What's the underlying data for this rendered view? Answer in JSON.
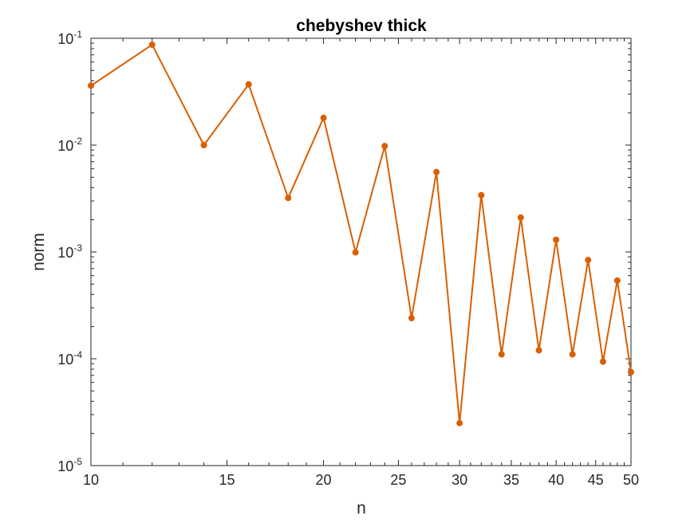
{
  "chart_data": {
    "type": "line",
    "title": "chebyshev thick",
    "xlabel": "n",
    "ylabel": "norm",
    "xscale": "log",
    "yscale": "log",
    "xlim": [
      10,
      50
    ],
    "ylim": [
      1e-05,
      0.1
    ],
    "grid": false,
    "legend": "none",
    "color": "#D95F00",
    "x_ticks": [
      {
        "value": 10,
        "label": "10"
      },
      {
        "value": 15,
        "label": "15"
      },
      {
        "value": 20,
        "label": "20"
      },
      {
        "value": 25,
        "label": "25"
      },
      {
        "value": 30,
        "label": "30"
      },
      {
        "value": 35,
        "label": "35"
      },
      {
        "value": 40,
        "label": "40"
      },
      {
        "value": 45,
        "label": "45"
      },
      {
        "value": 50,
        "label": "50"
      }
    ],
    "y_ticks": [
      {
        "value": 0.1,
        "base": "10",
        "exp": "-1"
      },
      {
        "value": 0.01,
        "base": "10",
        "exp": "-2"
      },
      {
        "value": 0.001,
        "base": "10",
        "exp": "-3"
      },
      {
        "value": 0.0001,
        "base": "10",
        "exp": "-4"
      },
      {
        "value": 1e-05,
        "base": "10",
        "exp": "-5"
      }
    ],
    "series": [
      {
        "x": [
          10,
          12,
          14,
          16,
          18,
          20,
          22,
          24,
          26,
          28,
          30,
          32,
          34,
          36,
          38,
          40,
          42,
          44,
          46,
          48,
          50
        ],
        "y": [
          0.036,
          0.087,
          0.01,
          0.037,
          0.0032,
          0.018,
          0.00099,
          0.0098,
          0.00024,
          0.0056,
          2.5e-05,
          0.0034,
          0.00011,
          0.0021,
          0.00012,
          0.0013,
          0.00011,
          0.00084,
          9.4e-05,
          0.00054,
          7.5e-05
        ]
      }
    ]
  }
}
